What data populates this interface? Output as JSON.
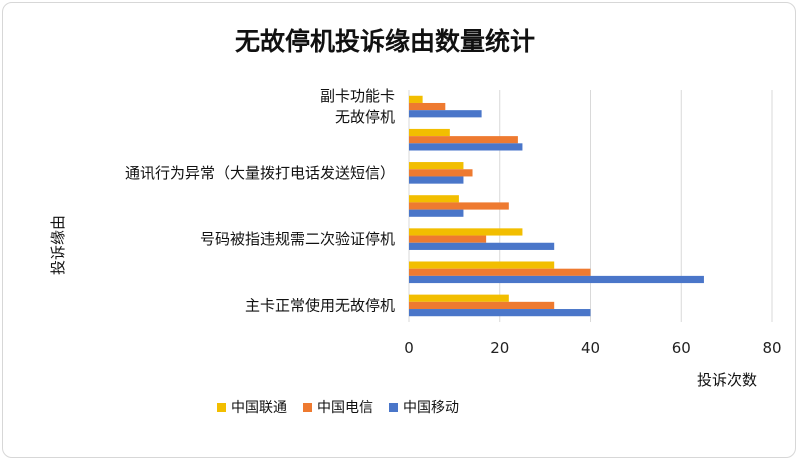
{
  "chart_data": {
    "type": "bar",
    "orientation": "horizontal",
    "title": "无故停机投诉缘由数量统计",
    "xlabel": "投诉次数",
    "ylabel": "投诉缘由",
    "xlim": [
      0,
      80
    ],
    "x_ticks": [
      0,
      20,
      40,
      60,
      80
    ],
    "grid": "vertical",
    "legend_position": "bottom-left",
    "categories": [
      [
        "副卡功能卡",
        "无故停机"
      ],
      [
        ""
      ],
      [
        "通讯行为异常（大量拨打电话发送短信）"
      ],
      [
        ""
      ],
      [
        "号码被指违规需二次验证停机"
      ],
      [
        ""
      ],
      [
        "主卡正常使用无故停机"
      ]
    ],
    "series": [
      {
        "name": "中国联通",
        "color": "#f2be00",
        "values": [
          3,
          9,
          12,
          11,
          25,
          32,
          22
        ]
      },
      {
        "name": "中国电信",
        "color": "#ee7a30",
        "values": [
          8,
          24,
          14,
          22,
          17,
          40,
          32
        ]
      },
      {
        "name": "中国移动",
        "color": "#4a76c9",
        "values": [
          16,
          25,
          12,
          12,
          32,
          65,
          40
        ]
      }
    ]
  }
}
